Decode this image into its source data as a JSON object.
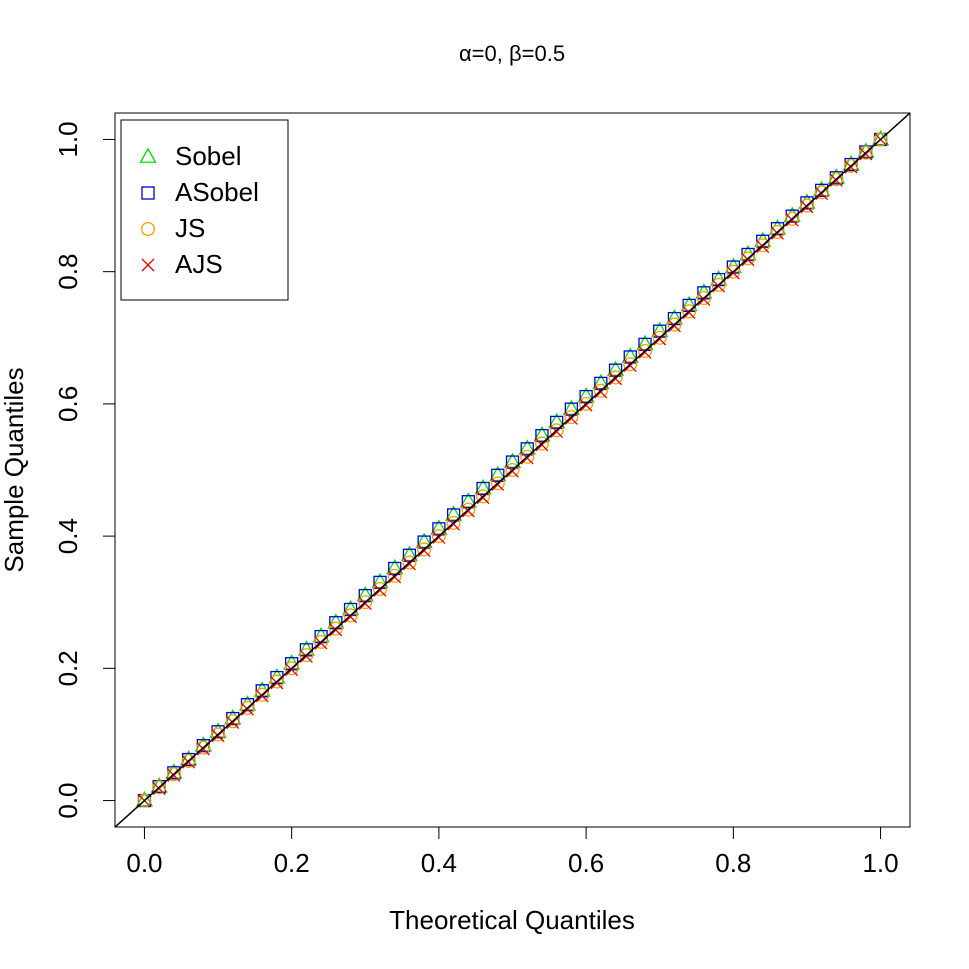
{
  "chart_data": {
    "type": "scatter",
    "title": "α=0, β=0.5",
    "xlabel": "Theoretical Quantiles",
    "ylabel": "Sample Quantiles",
    "x": [
      0,
      0.02,
      0.04,
      0.06,
      0.08,
      0.1,
      0.12,
      0.14,
      0.16,
      0.18,
      0.2,
      0.22,
      0.24,
      0.26,
      0.28,
      0.3,
      0.32,
      0.34,
      0.36,
      0.38,
      0.4,
      0.42,
      0.44,
      0.46,
      0.48,
      0.5,
      0.52,
      0.54,
      0.56,
      0.58,
      0.6,
      0.62,
      0.64,
      0.66,
      0.68,
      0.7,
      0.72,
      0.74,
      0.76,
      0.78,
      0.8,
      0.82,
      0.84,
      0.86,
      0.88,
      0.9,
      0.92,
      0.94,
      0.96,
      0.98,
      1.0
    ],
    "series": [
      {
        "name": "Sobel",
        "color": "#00e000",
        "marker": "triangle",
        "values": [
          0,
          0.021,
          0.042,
          0.062,
          0.083,
          0.104,
          0.124,
          0.145,
          0.166,
          0.186,
          0.207,
          0.228,
          0.248,
          0.269,
          0.289,
          0.31,
          0.33,
          0.351,
          0.371,
          0.391,
          0.411,
          0.432,
          0.452,
          0.472,
          0.492,
          0.512,
          0.532,
          0.552,
          0.572,
          0.592,
          0.611,
          0.631,
          0.651,
          0.671,
          0.69,
          0.71,
          0.729,
          0.749,
          0.768,
          0.788,
          0.807,
          0.826,
          0.846,
          0.865,
          0.884,
          0.904,
          0.923,
          0.942,
          0.962,
          0.981,
          1.0
        ]
      },
      {
        "name": "ASobel",
        "color": "#0000dd",
        "marker": "square",
        "values": [
          0,
          0.021,
          0.042,
          0.062,
          0.083,
          0.104,
          0.124,
          0.145,
          0.166,
          0.186,
          0.207,
          0.228,
          0.248,
          0.269,
          0.289,
          0.31,
          0.33,
          0.351,
          0.371,
          0.391,
          0.411,
          0.432,
          0.452,
          0.472,
          0.492,
          0.512,
          0.532,
          0.552,
          0.572,
          0.592,
          0.611,
          0.631,
          0.651,
          0.671,
          0.69,
          0.71,
          0.729,
          0.749,
          0.768,
          0.788,
          0.807,
          0.826,
          0.846,
          0.865,
          0.884,
          0.904,
          0.923,
          0.942,
          0.962,
          0.981,
          1.0
        ]
      },
      {
        "name": "JS",
        "color": "#f0a000",
        "marker": "circle",
        "values": [
          0,
          0.02,
          0.04,
          0.06,
          0.08,
          0.1,
          0.12,
          0.14,
          0.16,
          0.18,
          0.2,
          0.22,
          0.24,
          0.26,
          0.28,
          0.3,
          0.32,
          0.34,
          0.36,
          0.38,
          0.4,
          0.42,
          0.44,
          0.46,
          0.48,
          0.5,
          0.52,
          0.54,
          0.56,
          0.58,
          0.6,
          0.62,
          0.64,
          0.66,
          0.68,
          0.7,
          0.72,
          0.74,
          0.76,
          0.78,
          0.8,
          0.82,
          0.84,
          0.86,
          0.88,
          0.9,
          0.92,
          0.94,
          0.96,
          0.98,
          1.0
        ]
      },
      {
        "name": "AJS",
        "color": "#ee0000",
        "marker": "cross",
        "values": [
          0,
          0.018,
          0.038,
          0.058,
          0.078,
          0.098,
          0.118,
          0.138,
          0.158,
          0.178,
          0.198,
          0.218,
          0.238,
          0.258,
          0.278,
          0.298,
          0.318,
          0.338,
          0.358,
          0.378,
          0.398,
          0.418,
          0.438,
          0.458,
          0.478,
          0.498,
          0.518,
          0.538,
          0.558,
          0.578,
          0.598,
          0.618,
          0.638,
          0.658,
          0.678,
          0.698,
          0.718,
          0.738,
          0.758,
          0.778,
          0.798,
          0.818,
          0.838,
          0.858,
          0.878,
          0.898,
          0.918,
          0.938,
          0.958,
          0.978,
          1.0
        ]
      }
    ],
    "xlim": [
      -0.04,
      1.04
    ],
    "ylim": [
      -0.04,
      1.04
    ],
    "xticks": [
      {
        "value": 0,
        "label": "0.0"
      },
      0.2,
      0.4,
      0.6,
      0.8,
      {
        "value": 1,
        "label": "1.0"
      }
    ],
    "yticks": [
      {
        "value": 0,
        "label": "0.0"
      },
      0.2,
      0.4,
      0.6,
      0.8,
      {
        "value": 1,
        "label": "1.0"
      }
    ],
    "legend": "top-left",
    "grid": false
  }
}
